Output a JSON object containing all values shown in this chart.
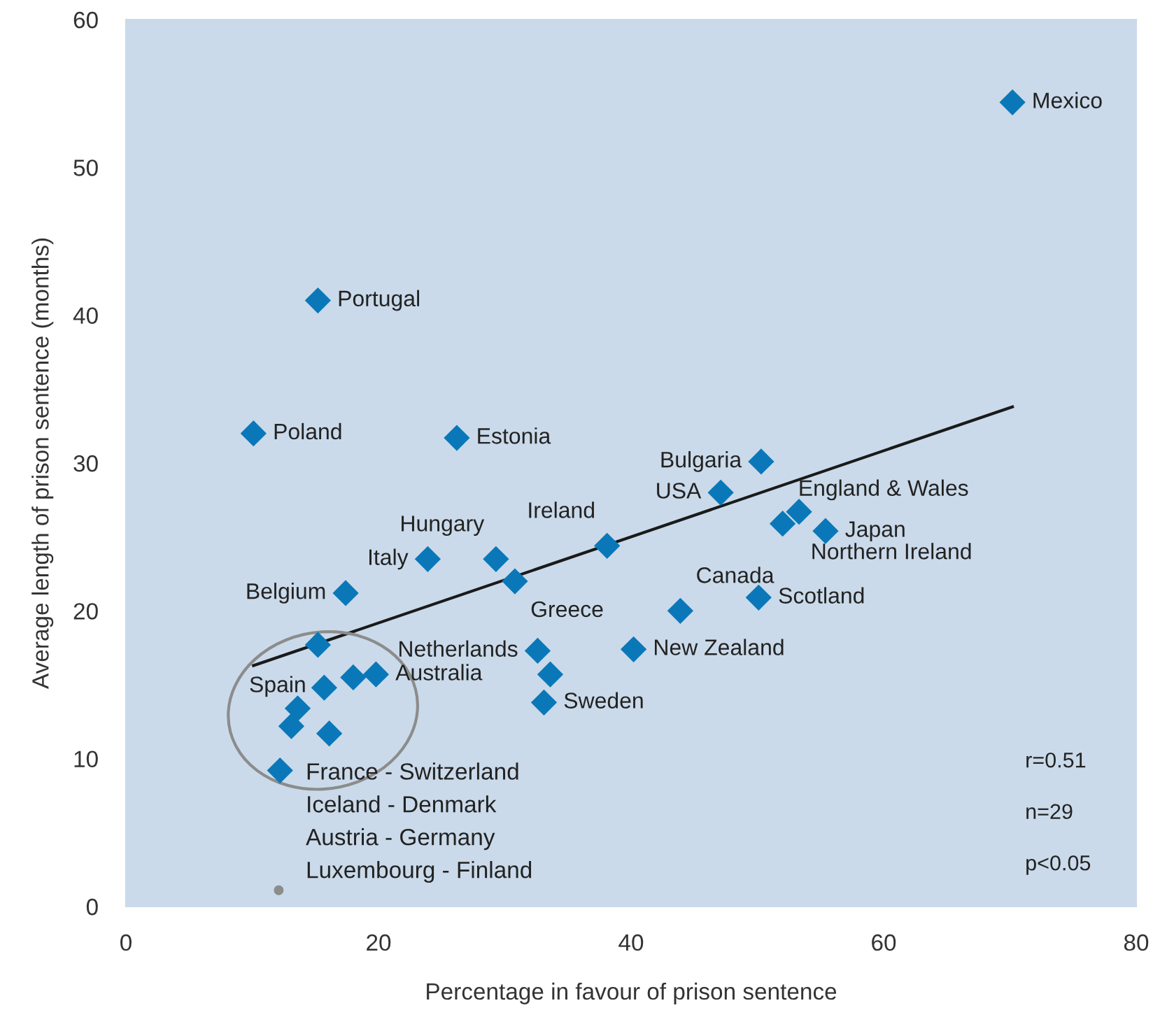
{
  "chart_data": {
    "type": "scatter",
    "xlabel": "Percentage in favour of prison sentence",
    "ylabel": "Average length of prison sentence (months)",
    "xlim": [
      0,
      80
    ],
    "xticks": [
      0,
      20,
      40,
      60,
      80
    ],
    "ylim": [
      0,
      60
    ],
    "yticks": [
      0,
      10,
      20,
      30,
      40,
      50,
      60
    ],
    "grid": false,
    "legend": false,
    "marker": "diamond",
    "series": [
      {
        "color": "#0a78b8",
        "x": [
          70.2,
          15.2,
          10.1,
          26.2,
          50.3,
          47.1,
          53.3,
          52.0,
          55.4,
          38.1,
          23.9,
          29.3,
          30.8,
          17.4,
          15.2,
          50.1,
          43.9,
          40.2,
          32.6,
          33.6,
          33.1,
          15.7,
          18.0,
          19.8,
          13.6,
          13.1,
          16.1,
          12.2
        ],
        "values": [
          54.4,
          41.0,
          32.0,
          31.7,
          30.1,
          28.0,
          26.7,
          25.9,
          25.4,
          24.4,
          23.5,
          23.5,
          22.0,
          21.2,
          17.7,
          20.9,
          20.0,
          17.4,
          17.3,
          15.7,
          13.8,
          14.8,
          15.5,
          15.7,
          13.4,
          12.2,
          11.7,
          9.2
        ]
      },
      {
        "color": "#8c8c8c",
        "marker": "circle",
        "x": [
          12.1
        ],
        "values": [
          1.1
        ]
      },
      {
        "type": "line",
        "color": "#1a1a1a",
        "marker": "none",
        "x": [
          10.1,
          70.2
        ],
        "values": [
          16.3,
          33.8
        ]
      }
    ],
    "annotations": [
      {
        "text": "Mexico",
        "x": 70.2,
        "y": 54.4
      },
      {
        "text": "Portugal",
        "x": 15.2,
        "y": 41.0
      },
      {
        "text": "Poland",
        "x": 10.1,
        "y": 32.0
      },
      {
        "text": "Estonia",
        "x": 26.2,
        "y": 31.7
      },
      {
        "text": "Bulgaria",
        "x": 50.3,
        "y": 30.1
      },
      {
        "text": "USA",
        "x": 47.1,
        "y": 28.0
      },
      {
        "text": "Northern Ireland",
        "x": 53.3,
        "y": 26.7
      },
      {
        "text": "Japan",
        "x": 55.4,
        "y": 25.4
      },
      {
        "text": "England & Wales",
        "x": 52.0,
        "y": 25.9
      },
      {
        "text": "Ireland",
        "x": 38.1,
        "y": 24.4
      },
      {
        "text": "Italy",
        "x": 23.9,
        "y": 23.5
      },
      {
        "text": "Hungary",
        "x": 29.3,
        "y": 23.5
      },
      {
        "text": "Greece",
        "x": 30.8,
        "y": 22.0
      },
      {
        "text": "Belgium",
        "x": 17.4,
        "y": 21.2
      },
      {
        "text": "Spain",
        "x": 15.2,
        "y": 17.7
      },
      {
        "text": "Scotland",
        "x": 50.1,
        "y": 20.9
      },
      {
        "text": "Canada",
        "x": 43.9,
        "y": 20.0
      },
      {
        "text": "Netherlands",
        "x": 32.6,
        "y": 17.3
      },
      {
        "text": "New Zealand",
        "x": 40.2,
        "y": 17.4
      },
      {
        "text": "Australia",
        "x": 19.8,
        "y": 15.7
      },
      {
        "text": "Sweden",
        "x": 33.1,
        "y": 13.8
      },
      "France - Switzerland",
      "Iceland - Denmark",
      "Austria - Germany",
      "Luxembourg - Finland",
      "r=0.51",
      "n=29",
      "p<0.05"
    ]
  }
}
